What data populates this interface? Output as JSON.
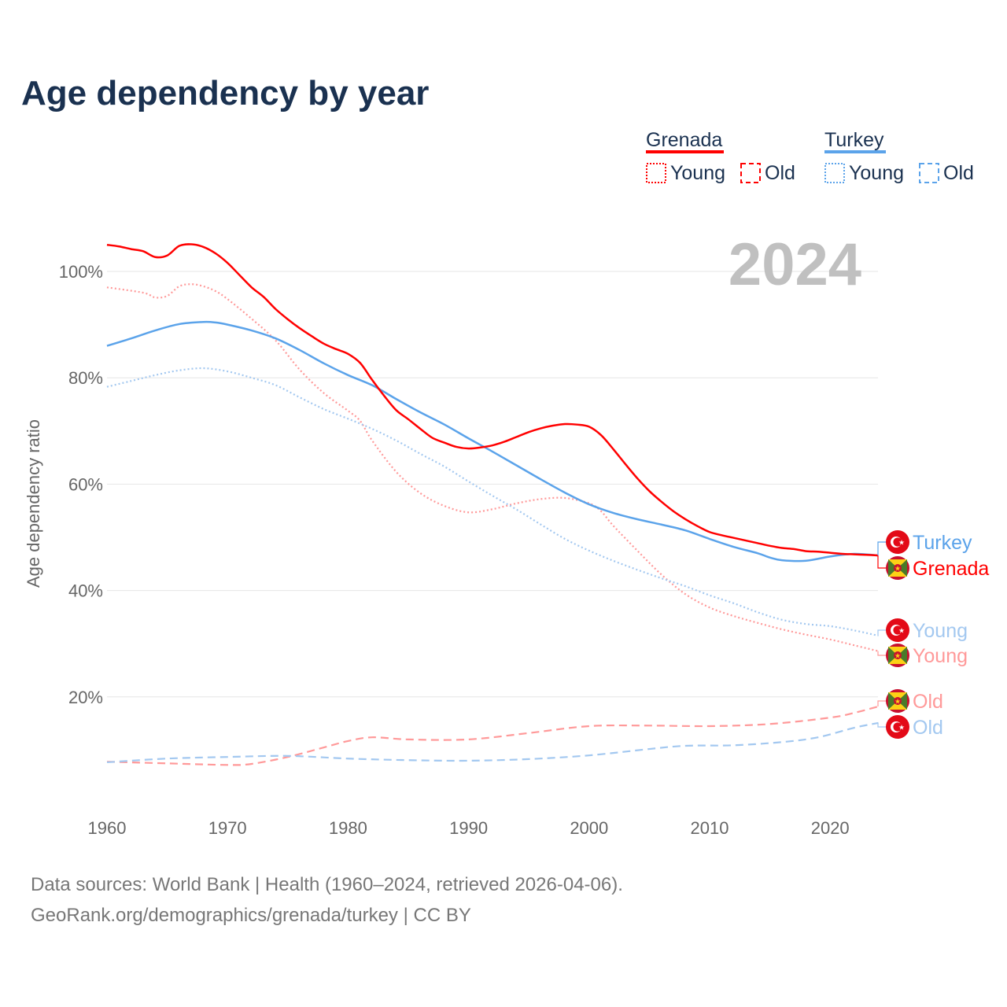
{
  "chart_data": {
    "type": "line",
    "title": "Age dependency by year",
    "ylabel": "Age dependency ratio",
    "xlabel": "",
    "xlim": [
      1960,
      2024
    ],
    "ylim": [
      0,
      110
    ],
    "x_ticks": [
      "1960",
      "1970",
      "1980",
      "1990",
      "2000",
      "2010",
      "2020"
    ],
    "y_ticks": [
      "20%",
      "40%",
      "60%",
      "80%",
      "100%"
    ],
    "grid": true,
    "year_label": "2024",
    "legend": {
      "placement": "top-right",
      "groups": [
        {
          "country": "Grenada",
          "color": "#ff0000",
          "items": [
            "Young",
            "Old"
          ]
        },
        {
          "country": "Turkey",
          "color": "#5ba3ea",
          "items": [
            "Young",
            "Old"
          ]
        }
      ]
    },
    "series": [
      {
        "name": "Grenada",
        "country": "Grenada",
        "kind": "total",
        "color": "#ff0000",
        "style": "solid",
        "end_label": "Grenada",
        "x": [
          1960,
          1961,
          1962,
          1963,
          1964,
          1965,
          1966,
          1967,
          1968,
          1969,
          1970,
          1971,
          1972,
          1973,
          1974,
          1975,
          1976,
          1977,
          1978,
          1979,
          1980,
          1981,
          1982,
          1983,
          1984,
          1985,
          1986,
          1987,
          1988,
          1989,
          1990,
          1991,
          1992,
          1993,
          1994,
          1995,
          1996,
          1997,
          1998,
          1999,
          2000,
          2001,
          2002,
          2003,
          2004,
          2005,
          2006,
          2007,
          2008,
          2009,
          2010,
          2011,
          2012,
          2013,
          2014,
          2015,
          2016,
          2017,
          2018,
          2019,
          2020,
          2021,
          2022,
          2023,
          2024
        ],
        "y": [
          105.0,
          104.7,
          104.2,
          103.8,
          102.7,
          103.0,
          104.8,
          105.1,
          104.6,
          103.4,
          101.6,
          99.3,
          97.0,
          95.2,
          92.9,
          91.0,
          89.3,
          87.8,
          86.4,
          85.4,
          84.5,
          82.8,
          79.6,
          76.6,
          73.9,
          72.2,
          70.4,
          68.7,
          67.8,
          67.0,
          66.7,
          66.9,
          67.3,
          68.0,
          68.9,
          69.8,
          70.5,
          71.0,
          71.3,
          71.2,
          70.8,
          69.2,
          66.6,
          63.8,
          61.1,
          58.7,
          56.7,
          54.9,
          53.4,
          52.1,
          51.0,
          50.4,
          49.9,
          49.4,
          48.9,
          48.4,
          48.0,
          47.8,
          47.4,
          47.3,
          47.1,
          46.9,
          46.8,
          46.7,
          46.6
        ]
      },
      {
        "name": "Turkey",
        "country": "Turkey",
        "kind": "total",
        "color": "#5ba3ea",
        "style": "solid",
        "end_label": "Turkey",
        "x": [
          1960,
          1962,
          1964,
          1966,
          1968,
          1969,
          1970,
          1972,
          1974,
          1976,
          1978,
          1980,
          1982,
          1984,
          1986,
          1988,
          1990,
          1992,
          1994,
          1996,
          1998,
          2000,
          2002,
          2004,
          2006,
          2008,
          2010,
          2012,
          2014,
          2015,
          2016,
          2018,
          2020,
          2022,
          2024
        ],
        "y": [
          86.0,
          87.4,
          88.9,
          90.1,
          90.5,
          90.4,
          90.0,
          88.9,
          87.4,
          85.2,
          82.7,
          80.5,
          78.6,
          76.0,
          73.5,
          71.2,
          68.6,
          66.1,
          63.5,
          60.9,
          58.4,
          56.2,
          54.6,
          53.4,
          52.4,
          51.3,
          49.7,
          48.2,
          47.0,
          46.2,
          45.7,
          45.6,
          46.4,
          46.9,
          46.6
        ]
      },
      {
        "name": "Grenada Young",
        "country": "Grenada",
        "kind": "young",
        "color": "#ff9999",
        "style": "dotted",
        "end_label": "Young",
        "x": [
          1960,
          1963,
          1964,
          1965,
          1966,
          1967,
          1968,
          1969,
          1970,
          1972,
          1974,
          1976,
          1978,
          1980,
          1981,
          1982,
          1984,
          1986,
          1988,
          1990,
          1992,
          1994,
          1996,
          1998,
          2000,
          2001,
          2002,
          2004,
          2006,
          2008,
          2010,
          2012,
          2014,
          2016,
          2018,
          2020,
          2022,
          2024
        ],
        "y": [
          97.0,
          96.0,
          95.1,
          95.4,
          97.2,
          97.6,
          97.2,
          96.3,
          94.8,
          91.1,
          87.0,
          81.5,
          77.1,
          73.8,
          71.9,
          68.2,
          62.3,
          58.3,
          55.9,
          54.7,
          55.3,
          56.4,
          57.2,
          57.4,
          56.4,
          54.9,
          52.2,
          47.5,
          43.0,
          39.3,
          36.8,
          35.2,
          33.9,
          32.7,
          31.7,
          30.8,
          29.7,
          28.6
        ]
      },
      {
        "name": "Turkey Young",
        "country": "Turkey",
        "kind": "young",
        "color": "#a3c8f0",
        "style": "dotted",
        "end_label": "Young",
        "x": [
          1960,
          1962,
          1964,
          1966,
          1968,
          1970,
          1972,
          1974,
          1976,
          1978,
          1980,
          1982,
          1984,
          1986,
          1988,
          1990,
          1992,
          1994,
          1996,
          1998,
          2000,
          2002,
          2004,
          2006,
          2008,
          2010,
          2012,
          2014,
          2016,
          2018,
          2020,
          2022,
          2024
        ],
        "y": [
          78.3,
          79.4,
          80.5,
          81.4,
          81.8,
          81.2,
          80.0,
          78.6,
          76.3,
          74.1,
          72.3,
          70.4,
          68.2,
          65.7,
          63.3,
          60.5,
          57.8,
          55.2,
          52.4,
          49.7,
          47.5,
          45.6,
          43.9,
          42.3,
          40.8,
          39.1,
          37.6,
          35.9,
          34.5,
          33.7,
          33.3,
          32.5,
          31.5
        ]
      },
      {
        "name": "Grenada Old",
        "country": "Grenada",
        "kind": "old",
        "color": "#ff9999",
        "style": "dashed",
        "end_label": "Old",
        "x": [
          1960,
          1965,
          1970,
          1972,
          1975,
          1978,
          1980,
          1982,
          1985,
          1990,
          1995,
          2000,
          2005,
          2010,
          2015,
          2020,
          2022,
          2024
        ],
        "y": [
          7.8,
          7.5,
          7.2,
          7.4,
          8.7,
          10.5,
          11.7,
          12.4,
          12.0,
          12.0,
          13.2,
          14.5,
          14.6,
          14.5,
          14.9,
          16.1,
          17.0,
          18.2
        ]
      },
      {
        "name": "Turkey Old",
        "country": "Turkey",
        "kind": "old",
        "color": "#a3c8f0",
        "style": "dashed",
        "end_label": "Old",
        "x": [
          1960,
          1965,
          1970,
          1975,
          1980,
          1985,
          1990,
          1995,
          2000,
          2005,
          2008,
          2012,
          2016,
          2019,
          2022,
          2024
        ],
        "y": [
          7.7,
          8.4,
          8.7,
          8.9,
          8.4,
          8.1,
          8.0,
          8.3,
          9.0,
          10.2,
          10.8,
          10.9,
          11.5,
          12.4,
          14.2,
          15.1
        ]
      }
    ],
    "source_lines": [
      "Data sources: World Bank | Health (1960–2024, retrieved 2026-04-06).",
      "GeoRank.org/demographics/grenada/turkey | CC BY"
    ]
  }
}
